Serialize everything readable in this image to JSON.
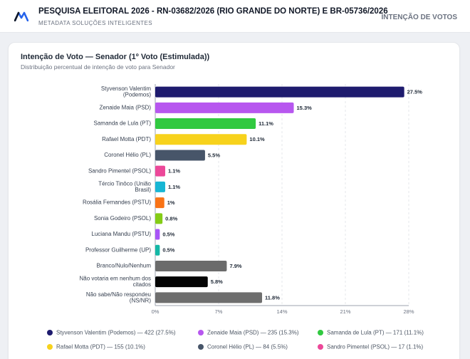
{
  "header": {
    "title": "PESQUISA ELEITORAL 2026 - RN-03682/2026 (RIO GRANDE DO NORTE) E BR-05736/2026",
    "subtitle": "METADATA SOLUÇÕES INTELIGENTES",
    "section_label": "INTENÇÃO DE VOTOS",
    "logo_icon": "metadata-logo-icon",
    "logo_color": "#2563eb"
  },
  "card": {
    "title": "Intenção de Voto — Senador (1º Voto (Estimulada))",
    "subtitle": "Distribuição percentual de intenção de voto para Senador"
  },
  "chart_data": {
    "type": "bar",
    "orientation": "horizontal",
    "categories": [
      "Styvenson Valentim (Podemos)",
      "Zenaide Maia (PSD)",
      "Samanda de Lula (PT)",
      "Rafael Motta (PDT)",
      "Coronel Hélio (PL)",
      "Sandro Pimentel (PSOL)",
      "Tércio Tinôco (União Brasil)",
      "Rosália Fernandes (PSTU)",
      "Sonia Godeiro (PSOL)",
      "Luciana Mandu (PSTU)",
      "Professor Guilherme (UP)",
      "Branco/Nulo/Nenhum",
      "Não votaria em nenhum dos citados",
      "Não sabe/Não respondeu (NS/NR)"
    ],
    "values": [
      27.5,
      15.3,
      11.1,
      10.1,
      5.5,
      1.1,
      1.1,
      1,
      0.8,
      0.5,
      0.5,
      7.9,
      5.8,
      11.8
    ],
    "value_labels": [
      "27.5%",
      "15.3%",
      "11.1%",
      "10.1%",
      "5.5%",
      "1.1%",
      "1.1%",
      "1%",
      "0.8%",
      "0.5%",
      "0.5%",
      "7.9%",
      "5.8%",
      "11.8%"
    ],
    "colors": [
      "#1e1b6e",
      "#b757ef",
      "#31c940",
      "#f7d21c",
      "#475569",
      "#ec4899",
      "#17b6d4",
      "#f97316",
      "#84cc16",
      "#a855f7",
      "#14b8a6",
      "#6b6b6b",
      "#050505",
      "#6e6e6e"
    ],
    "xlim": [
      0,
      28
    ],
    "xticks": [
      0,
      7,
      14,
      21,
      28
    ],
    "xtick_labels": [
      "0%",
      "7%",
      "14%",
      "21%",
      "28%"
    ],
    "grid": true,
    "legend_position": "bottom",
    "legend": [
      {
        "label": "Styvenson Valentim (Podemos) — 422 (27.5%)",
        "color": "#1e1b6e"
      },
      {
        "label": "Zenaide Maia (PSD) — 235 (15.3%)",
        "color": "#b757ef"
      },
      {
        "label": "Samanda de Lula (PT) — 171 (11.1%)",
        "color": "#31c940"
      },
      {
        "label": "Rafael Motta (PDT) — 155 (10.1%)",
        "color": "#f7d21c"
      },
      {
        "label": "Coronel Hélio (PL) — 84 (5.5%)",
        "color": "#475569"
      },
      {
        "label": "Sandro Pimentel (PSOL) — 17 (1.1%)",
        "color": "#ec4899"
      }
    ]
  }
}
